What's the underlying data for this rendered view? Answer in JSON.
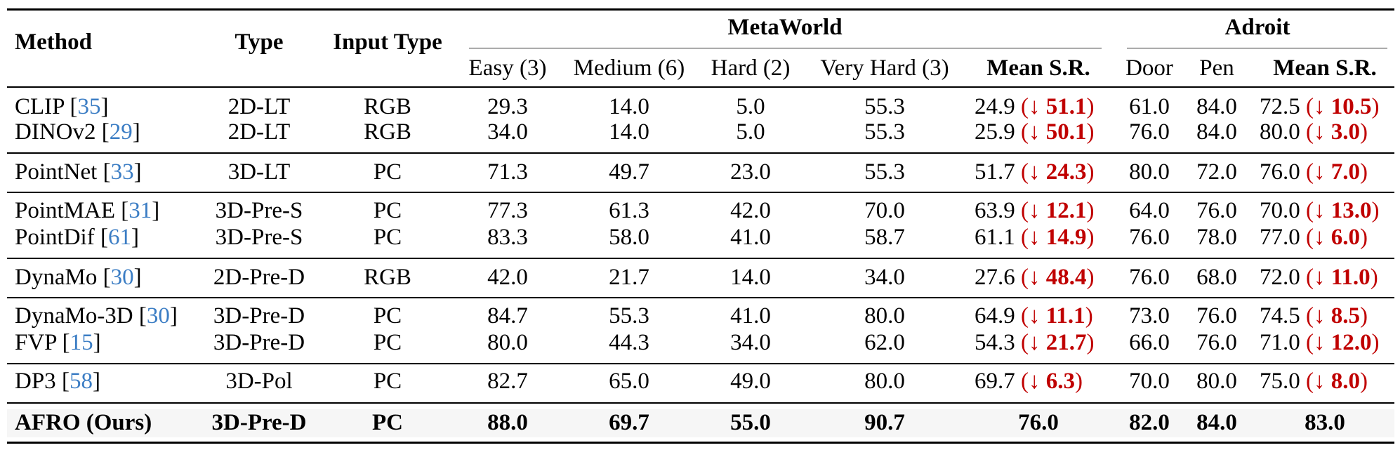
{
  "colors": {
    "citation": "#3b7dc4",
    "delta": "#c00000",
    "highlight_row": "#f6f6f6"
  },
  "header": {
    "method": "Method",
    "type": "Type",
    "input_type": "Input Type",
    "group_metaworld": "MetaWorld",
    "group_adroit": "Adroit",
    "metaworld_cols": [
      "Easy (3)",
      "Medium (6)",
      "Hard (2)",
      "Very Hard (3)",
      "Mean S.R."
    ],
    "adroit_cols": [
      "Door",
      "Pen",
      "Mean S.R."
    ]
  },
  "delta_arrow": "↓",
  "rows": [
    {
      "method": "CLIP",
      "cite": "35",
      "type": "2D-LT",
      "input": "RGB",
      "easy": "29.3",
      "medium": "14.0",
      "hard": "5.0",
      "very_hard": "55.3",
      "mw_mean": "24.9",
      "mw_delta": "51.1",
      "door": "61.0",
      "pen": "84.0",
      "ad_mean": "72.5",
      "ad_delta": "10.5"
    },
    {
      "method": "DINOv2",
      "cite": "29",
      "type": "2D-LT",
      "input": "RGB",
      "easy": "34.0",
      "medium": "14.0",
      "hard": "5.0",
      "very_hard": "55.3",
      "mw_mean": "25.9",
      "mw_delta": "50.1",
      "door": "76.0",
      "pen": "84.0",
      "ad_mean": "80.0",
      "ad_delta": "3.0"
    },
    {
      "method": "PointNet",
      "cite": "33",
      "type": "3D-LT",
      "input": "PC",
      "easy": "71.3",
      "medium": "49.7",
      "hard": "23.0",
      "very_hard": "55.3",
      "mw_mean": "51.7",
      "mw_delta": "24.3",
      "door": "80.0",
      "pen": "72.0",
      "ad_mean": "76.0",
      "ad_delta": "7.0"
    },
    {
      "method": "PointMAE",
      "cite": "31",
      "type": "3D-Pre-S",
      "input": "PC",
      "easy": "77.3",
      "medium": "61.3",
      "hard": "42.0",
      "very_hard": "70.0",
      "mw_mean": "63.9",
      "mw_delta": "12.1",
      "door": "64.0",
      "pen": "76.0",
      "ad_mean": "70.0",
      "ad_delta": "13.0"
    },
    {
      "method": "PointDif",
      "cite": "61",
      "type": "3D-Pre-S",
      "input": "PC",
      "easy": "83.3",
      "medium": "58.0",
      "hard": "41.0",
      "very_hard": "58.7",
      "mw_mean": "61.1",
      "mw_delta": "14.9",
      "door": "76.0",
      "pen": "78.0",
      "ad_mean": "77.0",
      "ad_delta": "6.0"
    },
    {
      "method": "DynaMo",
      "cite": "30",
      "type": "2D-Pre-D",
      "input": "RGB",
      "easy": "42.0",
      "medium": "21.7",
      "hard": "14.0",
      "very_hard": "34.0",
      "mw_mean": "27.6",
      "mw_delta": "48.4",
      "door": "76.0",
      "pen": "68.0",
      "ad_mean": "72.0",
      "ad_delta": "11.0"
    },
    {
      "method": "DynaMo-3D",
      "cite": "30",
      "type": "3D-Pre-D",
      "input": "PC",
      "easy": "84.7",
      "medium": "55.3",
      "hard": "41.0",
      "very_hard": "80.0",
      "mw_mean": "64.9",
      "mw_delta": "11.1",
      "door": "73.0",
      "pen": "76.0",
      "ad_mean": "74.5",
      "ad_delta": "8.5"
    },
    {
      "method": "FVP",
      "cite": "15",
      "type": "3D-Pre-D",
      "input": "PC",
      "easy": "80.0",
      "medium": "44.3",
      "hard": "34.0",
      "very_hard": "62.0",
      "mw_mean": "54.3",
      "mw_delta": "21.7",
      "door": "66.0",
      "pen": "76.0",
      "ad_mean": "71.0",
      "ad_delta": "12.0"
    },
    {
      "method": "DP3",
      "cite": "58",
      "type": "3D-Pol",
      "input": "PC",
      "easy": "82.7",
      "medium": "65.0",
      "hard": "49.0",
      "very_hard": "80.0",
      "mw_mean": "69.7",
      "mw_delta": "6.3",
      "door": "70.0",
      "pen": "80.0",
      "ad_mean": "75.0",
      "ad_delta": "8.0"
    },
    {
      "method": "AFRO (Ours)",
      "type": "3D-Pre-D",
      "input": "PC",
      "easy": "88.0",
      "medium": "69.7",
      "hard": "55.0",
      "very_hard": "90.7",
      "mw_mean": "76.0",
      "door": "82.0",
      "pen": "84.0",
      "ad_mean": "83.0",
      "highlight": true
    }
  ]
}
